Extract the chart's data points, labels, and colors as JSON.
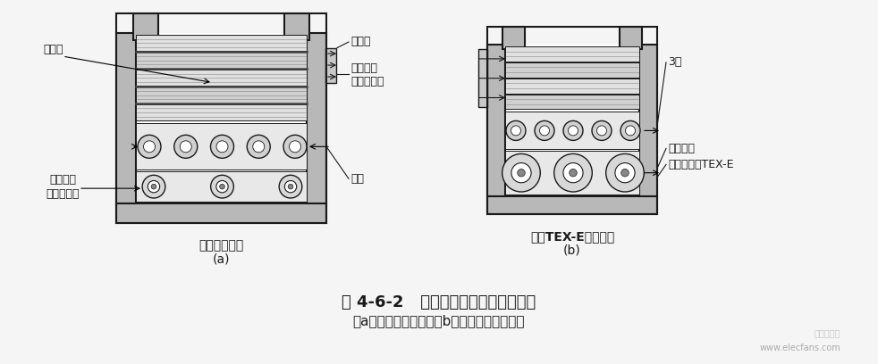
{
  "bg_color": "#f5f5f5",
  "line_color": "#1a1a1a",
  "gray_fill": "#c0c0c0",
  "white_fill": "#ffffff",
  "inner_gray": "#d8d8d8",
  "title_text": "图 4-6-2   两种高频变压器的结构比较",
  "subtitle_text": "（a）用漆包线绕制；（b）用三层绝缘线绕制",
  "label_a": "传统的变压器",
  "label_a2": "(a)",
  "label_b": "使用TEX-E的变压器",
  "label_b2": "(b)",
  "anno_zu": "阻挡栅",
  "anno_2nd_a": "二次绕组",
  "anno_2nd_a2": "（漆包线）",
  "anno_jy": "绝缘带",
  "anno_1st": "一次绕组",
  "anno_1st2": "（漆包线）",
  "anno_gj": "骨架",
  "anno_3c": "3层",
  "anno_2nd_b": "二次绕组",
  "anno_tex": "三层绝缘线TEX-E",
  "watermark": "www.elecfans.com"
}
